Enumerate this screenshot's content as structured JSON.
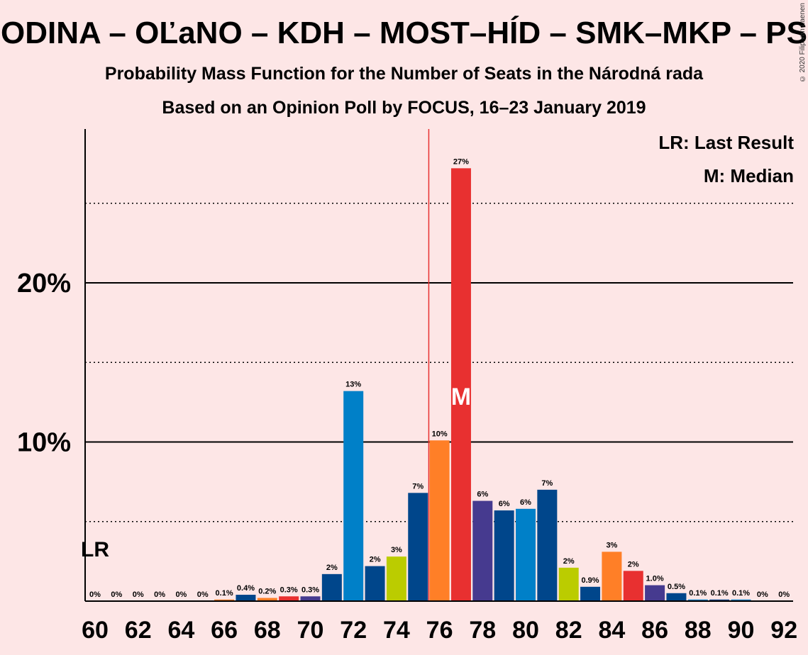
{
  "header": {
    "title": "ODINA – OĽaNO – KDH – MOST–HÍD – SMK–MKP – PS",
    "subtitle": "Probability Mass Function for the Number of Seats in the Národná rada",
    "subtitle2": "Based on an Opinion Poll by FOCUS, 16–23 January 2019",
    "copyright": "© 2020 Filip van Laenen"
  },
  "legend": {
    "lr": "LR: Last Result",
    "m": "M: Median"
  },
  "chart_data": {
    "type": "bar",
    "x": [
      60,
      61,
      62,
      63,
      64,
      65,
      66,
      67,
      68,
      69,
      70,
      71,
      72,
      73,
      74,
      75,
      76,
      77,
      78,
      79,
      80,
      81,
      82,
      83,
      84,
      85,
      86,
      87,
      88,
      89,
      90,
      91,
      92
    ],
    "values": [
      0,
      0,
      0,
      0,
      0,
      0,
      0.1,
      0.4,
      0.2,
      0.3,
      0.3,
      1.7,
      13.2,
      2.2,
      2.8,
      6.8,
      10.1,
      27.2,
      6.3,
      5.7,
      5.8,
      7.0,
      2.1,
      0.9,
      3.1,
      1.9,
      1.0,
      0.5,
      0.1,
      0.1,
      0.1,
      0,
      0
    ],
    "labels": [
      "0%",
      "0%",
      "0%",
      "0%",
      "0%",
      "0%",
      "0.1%",
      "0.4%",
      "0.2%",
      "0.3%",
      "0.3%",
      "2%",
      "13%",
      "2%",
      "3%",
      "7%",
      "10%",
      "27%",
      "6%",
      "6%",
      "6%",
      "7%",
      "2%",
      "0.9%",
      "3%",
      "2%",
      "1.0%",
      "0.5%",
      "0.1%",
      "0.1%",
      "0.1%",
      "0%",
      "0%"
    ],
    "colors": [
      "#0080c8",
      "#0080c8",
      "#0080c8",
      "#0080c8",
      "#0080c8",
      "#bbcc00",
      "#ff7f27",
      "#00468b",
      "#ff7f27",
      "#e83030",
      "#463a8f",
      "#00468b",
      "#0080c8",
      "#00468b",
      "#bbcc00",
      "#00468b",
      "#ff7f27",
      "#e83030",
      "#463a8f",
      "#00468b",
      "#0080c8",
      "#00468b",
      "#bbcc00",
      "#00468b",
      "#ff7f27",
      "#e83030",
      "#463a8f",
      "#00468b",
      "#0080c8",
      "#00468b",
      "#0080c8",
      "#00468b",
      "#0080c8"
    ],
    "xticks": [
      "60",
      "62",
      "64",
      "66",
      "68",
      "70",
      "72",
      "74",
      "76",
      "78",
      "80",
      "82",
      "84",
      "86",
      "88",
      "90",
      "92"
    ],
    "yticks": [
      {
        "value": 10,
        "label": "10%"
      },
      {
        "value": 20,
        "label": "20%"
      }
    ],
    "minor_gridlines": [
      5,
      15,
      25
    ],
    "ylim": [
      0,
      29.5
    ],
    "last_result_seat": 60,
    "last_result_label": "LR",
    "majority_line_seat": 75.5,
    "median_seat": 77,
    "median_label": "M"
  }
}
